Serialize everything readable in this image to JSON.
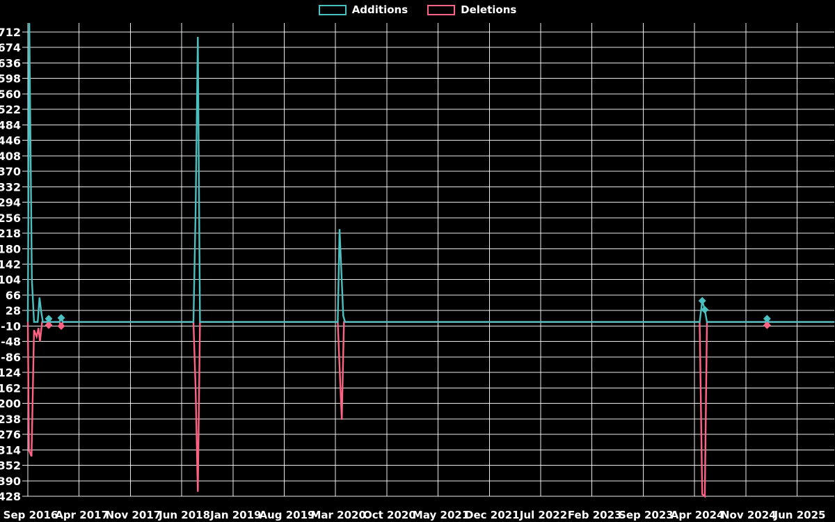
{
  "legend": {
    "items": [
      {
        "label": "Additions",
        "color": "#4bc0c0"
      },
      {
        "label": "Deletions",
        "color": "#ff6384"
      }
    ]
  },
  "chart_data": {
    "type": "line",
    "title": "",
    "xlabel": "",
    "ylabel": "",
    "background_color": "#000000",
    "gridline_color": "rgba(255,255,255,0.92)",
    "grid": true,
    "legend_position": "top",
    "x_axis": {
      "unit": "months since Sep 2016",
      "tick_labels": [
        "Sep 2016",
        "Apr 2017",
        "Nov 2017",
        "Jun 2018",
        "Jan 2019",
        "Aug 2019",
        "Mar 2020",
        "Oct 2020",
        "May 2021",
        "Dec 2021",
        "Jul 2022",
        "Feb 2023",
        "Sep 2023",
        "Apr 2024",
        "Nov 2024",
        "Jun 2025"
      ],
      "tick_interval_months": 7,
      "range_months": [
        0,
        110.1
      ]
    },
    "y_axis": {
      "ticks": [
        712,
        674,
        636,
        598,
        560,
        522,
        484,
        446,
        408,
        370,
        332,
        294,
        256,
        218,
        180,
        142,
        104,
        66,
        28,
        -10,
        -48,
        -86,
        -124,
        -162,
        -200,
        -238,
        -276,
        -314,
        -352,
        -390,
        -428
      ],
      "min": -428,
      "max": 712,
      "step": 38,
      "top_clip_value": 734
    },
    "series": [
      {
        "name": "Additions",
        "color": "#4bc0c0",
        "marker_shape": "diamond",
        "points": [
          [
            0.0,
            0
          ],
          [
            0.2,
            734
          ],
          [
            0.55,
            104
          ],
          [
            0.85,
            0
          ],
          [
            1.35,
            0
          ],
          [
            1.6,
            60
          ],
          [
            1.8,
            28
          ],
          [
            2.05,
            0
          ],
          [
            2.6,
            0
          ],
          [
            2.85,
            8,
            1
          ],
          [
            3.1,
            0
          ],
          [
            4.3,
            0
          ],
          [
            4.56,
            10,
            1
          ],
          [
            4.8,
            0
          ],
          [
            22.6,
            0
          ],
          [
            22.9,
            270
          ],
          [
            23.2,
            700
          ],
          [
            23.5,
            0
          ],
          [
            42.3,
            0
          ],
          [
            42.55,
            228
          ],
          [
            42.85,
            100
          ],
          [
            43.05,
            15
          ],
          [
            43.3,
            0
          ],
          [
            91.7,
            0
          ],
          [
            92.05,
            52,
            1
          ],
          [
            92.4,
            30,
            1
          ],
          [
            92.7,
            0
          ],
          [
            100.65,
            0
          ],
          [
            100.9,
            8,
            1
          ],
          [
            101.15,
            0
          ],
          [
            110.1,
            0
          ]
        ]
      },
      {
        "name": "Deletions",
        "color": "#ff6384",
        "marker_shape": "diamond",
        "points": [
          [
            0.0,
            0
          ],
          [
            0.15,
            -315
          ],
          [
            0.5,
            -330
          ],
          [
            0.85,
            -20
          ],
          [
            1.2,
            -36
          ],
          [
            1.45,
            -15
          ],
          [
            1.65,
            -48
          ],
          [
            1.95,
            0
          ],
          [
            2.6,
            0
          ],
          [
            2.85,
            -8,
            1
          ],
          [
            3.1,
            0
          ],
          [
            4.3,
            0
          ],
          [
            4.56,
            -10,
            1
          ],
          [
            4.8,
            0
          ],
          [
            22.6,
            0
          ],
          [
            22.9,
            -162
          ],
          [
            23.2,
            -417
          ],
          [
            23.5,
            0
          ],
          [
            42.3,
            0
          ],
          [
            42.55,
            -110
          ],
          [
            42.85,
            -240
          ],
          [
            43.15,
            0
          ],
          [
            91.7,
            0
          ],
          [
            92.05,
            -423
          ],
          [
            92.4,
            -428
          ],
          [
            92.7,
            0
          ],
          [
            100.65,
            0
          ],
          [
            100.9,
            -8,
            1
          ],
          [
            101.15,
            0
          ],
          [
            110.1,
            0
          ]
        ]
      }
    ]
  }
}
